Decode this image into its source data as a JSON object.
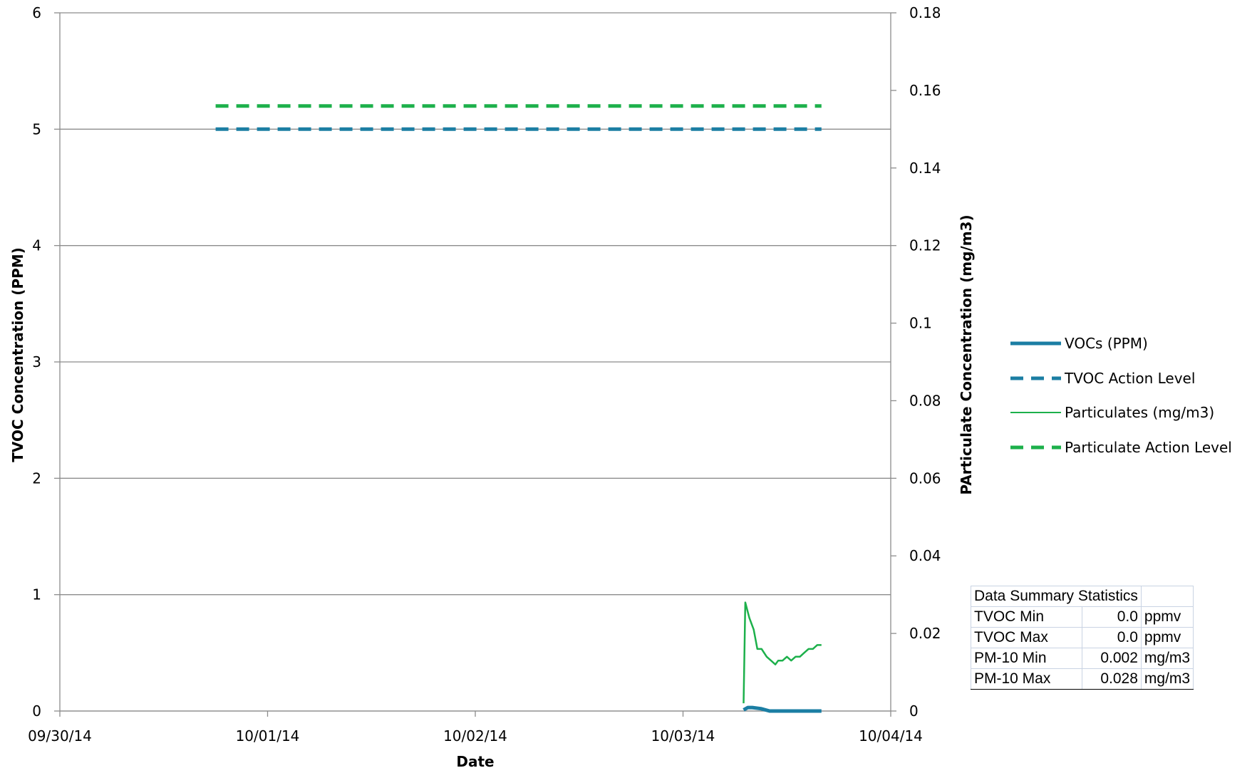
{
  "chart_data": {
    "type": "line",
    "xlabel": "Date",
    "ylabel": "TVOC Concentration (PPM)",
    "y2label": "PArticulate Concentration (mg/m3)",
    "x_tick_labels": [
      "09/30/14",
      "10/01/14",
      "10/02/14",
      "10/03/14",
      "10/04/14"
    ],
    "xlim": [
      "2014-09-30",
      "2014-10-04"
    ],
    "ylim": [
      0,
      6
    ],
    "y_ticks": [
      "0",
      "1",
      "2",
      "3",
      "4",
      "5",
      "6"
    ],
    "y2lim": [
      0,
      0.18
    ],
    "y2_ticks": [
      "0",
      "0.02",
      "0.04",
      "0.06",
      "0.08",
      "0.1",
      "0.12",
      "0.14",
      "0.16",
      "0.18"
    ],
    "grid": "horizontal",
    "legend_position": "right",
    "series": [
      {
        "name": "VOCs (PPM)",
        "axis": "left",
        "color": "#1b7ea3",
        "style": "solid-thick",
        "x": [
          "2014-10-03 07:00",
          "2014-10-03 07:30",
          "2014-10-03 08:00",
          "2014-10-03 09:00",
          "2014-10-03 10:00",
          "2014-10-03 12:00",
          "2014-10-03 14:00",
          "2014-10-03 16:00"
        ],
        "values": [
          0.01,
          0.03,
          0.03,
          0.02,
          0.0,
          0.0,
          0.0,
          0.0
        ]
      },
      {
        "name": "TVOC Action Level",
        "axis": "left",
        "color": "#1b7ea3",
        "style": "dashed",
        "x": [
          "2014-09-30 18:00",
          "2014-10-03 16:00"
        ],
        "values": [
          5,
          5
        ]
      },
      {
        "name": "Particulates (mg/m3)",
        "axis": "right",
        "color": "#1db04b",
        "style": "solid-thin",
        "x": [
          "2014-10-03 07:00",
          "2014-10-03 07:12",
          "2014-10-03 07:40",
          "2014-10-03 08:10",
          "2014-10-03 08:35",
          "2014-10-03 09:05",
          "2014-10-03 09:40",
          "2014-10-03 10:10",
          "2014-10-03 10:40",
          "2014-10-03 11:00",
          "2014-10-03 11:30",
          "2014-10-03 12:00",
          "2014-10-03 12:30",
          "2014-10-03 13:00",
          "2014-10-03 13:30",
          "2014-10-03 14:00",
          "2014-10-03 14:30",
          "2014-10-03 15:00",
          "2014-10-03 15:30",
          "2014-10-03 16:00"
        ],
        "values": [
          0.002,
          0.028,
          0.024,
          0.021,
          0.016,
          0.016,
          0.014,
          0.013,
          0.012,
          0.013,
          0.013,
          0.014,
          0.013,
          0.014,
          0.014,
          0.015,
          0.016,
          0.016,
          0.017,
          0.017
        ]
      },
      {
        "name": "Particulate Action Level",
        "axis": "right",
        "color": "#1db04b",
        "style": "dashed",
        "x": [
          "2014-09-30 18:00",
          "2014-10-03 16:00"
        ],
        "values": [
          0.156,
          0.156
        ]
      }
    ]
  },
  "stats_table": {
    "title": "Data Summary Statistics",
    "rows": [
      {
        "label": "TVOC Min",
        "value": "0.0",
        "unit": "ppmv"
      },
      {
        "label": "TVOC Max",
        "value": "0.0",
        "unit": "ppmv"
      },
      {
        "label": "PM-10 Min",
        "value": "0.002",
        "unit": "mg/m3"
      },
      {
        "label": "PM-10 Max",
        "value": "0.028",
        "unit": "mg/m3"
      }
    ]
  }
}
